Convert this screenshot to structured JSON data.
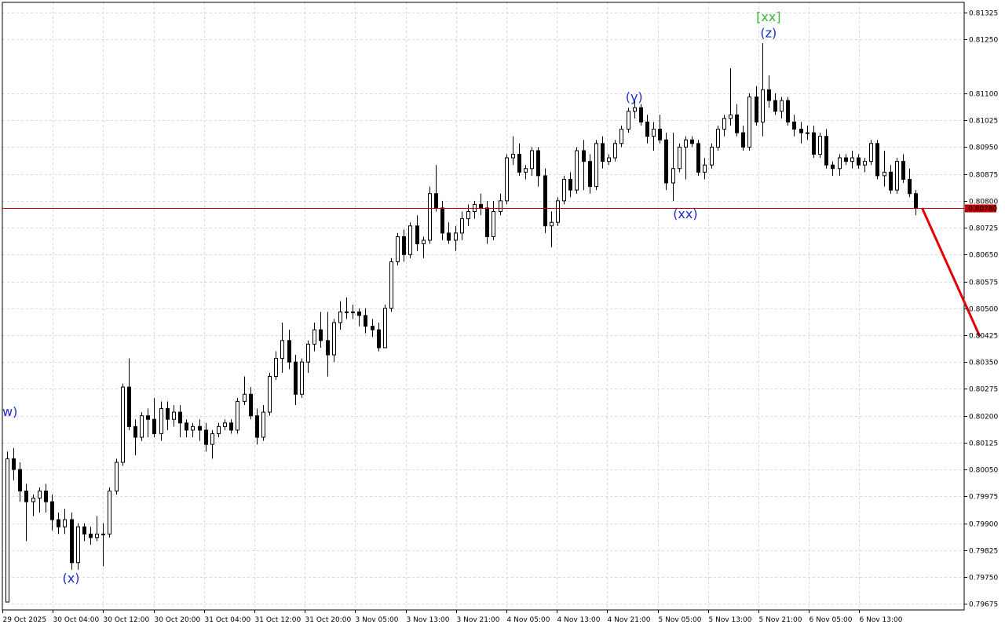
{
  "chart_data": {
    "type": "candlestick",
    "instrument_note": "",
    "colors": {
      "background": "#ffffff",
      "grid": "#d9d9d9",
      "axis": "#000000",
      "candle_up_fill": "#ffffff",
      "candle_down_fill": "#000000",
      "candle_border": "#000000",
      "price_line": "#c00000",
      "price_label_bg": "#c00000",
      "price_label_text": "#ffffff",
      "forecast_line": "#e00000",
      "wave_label_blue": "#1a2bd1",
      "wave_label_green": "#33bb33"
    },
    "y_axis": {
      "ticks": [
        "0.81325",
        "0.81250",
        "0.81100",
        "0.81025",
        "0.80950",
        "0.80875",
        "0.80800",
        "0.80725",
        "0.80650",
        "0.80575",
        "0.80500",
        "0.80425",
        "0.80350",
        "0.80275",
        "0.80200",
        "0.80125",
        "0.80050",
        "0.79975",
        "0.79900",
        "0.79825",
        "0.79750",
        "0.79675"
      ],
      "ylim": [
        0.79658,
        0.81354
      ]
    },
    "x_axis": {
      "ticks": [
        "29 Oct 2025",
        "30 Oct 04:00",
        "30 Oct 12:00",
        "30 Oct 20:00",
        "31 Oct 04:00",
        "31 Oct 12:00",
        "31 Oct 20:00",
        "3 Nov 05:00",
        "3 Nov 13:00",
        "3 Nov 21:00",
        "4 Nov 05:00",
        "4 Nov 13:00",
        "4 Nov 21:00",
        "5 Nov 05:00",
        "5 Nov 13:00",
        "5 Nov 21:00",
        "6 Nov 05:00",
        "6 Nov 13:00"
      ],
      "bar_step_label": "1 bar = 1 hour"
    },
    "current_price": {
      "value": 0.8078,
      "label": "0.80780"
    },
    "ohlc": [
      [
        0.7968,
        0.801,
        0.7968,
        0.8008
      ],
      [
        0.8008,
        0.8011,
        0.8002,
        0.8005
      ],
      [
        0.8005,
        0.8007,
        0.7996,
        0.7999
      ],
      [
        0.7999,
        0.8001,
        0.7985,
        0.7996
      ],
      [
        0.7996,
        0.7998,
        0.7992,
        0.7997
      ],
      [
        0.7997,
        0.8,
        0.7993,
        0.7999
      ],
      [
        0.7999,
        0.8001,
        0.7993,
        0.7996
      ],
      [
        0.7996,
        0.7998,
        0.7988,
        0.7991
      ],
      [
        0.7991,
        0.7993,
        0.7987,
        0.7989
      ],
      [
        0.7989,
        0.7994,
        0.7987,
        0.7991
      ],
      [
        0.7991,
        0.7993,
        0.7977,
        0.7979
      ],
      [
        0.7979,
        0.799,
        0.7977,
        0.7989
      ],
      [
        0.7989,
        0.799,
        0.7985,
        0.7987
      ],
      [
        0.7987,
        0.7989,
        0.7984,
        0.7986
      ],
      [
        0.7986,
        0.7992,
        0.7985,
        0.7987
      ],
      [
        0.7987,
        0.799,
        0.7978,
        0.7987
      ],
      [
        0.7987,
        0.8,
        0.7986,
        0.7999
      ],
      [
        0.7999,
        0.8008,
        0.7998,
        0.8007
      ],
      [
        0.8007,
        0.8029,
        0.8006,
        0.8028
      ],
      [
        0.8028,
        0.8036,
        0.8016,
        0.8017
      ],
      [
        0.8017,
        0.8019,
        0.8009,
        0.8014
      ],
      [
        0.8014,
        0.8021,
        0.8013,
        0.802
      ],
      [
        0.802,
        0.8022,
        0.8014,
        0.8019
      ],
      [
        0.8019,
        0.8025,
        0.8014,
        0.8015
      ],
      [
        0.8015,
        0.8024,
        0.8013,
        0.8022
      ],
      [
        0.8022,
        0.8024,
        0.8016,
        0.8019
      ],
      [
        0.8019,
        0.8023,
        0.8017,
        0.8021
      ],
      [
        0.8021,
        0.8023,
        0.8014,
        0.8018
      ],
      [
        0.8018,
        0.8019,
        0.8014,
        0.8016
      ],
      [
        0.8016,
        0.8018,
        0.8014,
        0.8017
      ],
      [
        0.8017,
        0.8019,
        0.8013,
        0.8016
      ],
      [
        0.8016,
        0.8018,
        0.801,
        0.8012
      ],
      [
        0.8012,
        0.8016,
        0.8008,
        0.8015
      ],
      [
        0.8015,
        0.8018,
        0.8014,
        0.8017
      ],
      [
        0.8017,
        0.8019,
        0.8016,
        0.8018
      ],
      [
        0.8018,
        0.8019,
        0.8015,
        0.8016
      ],
      [
        0.8016,
        0.8025,
        0.8015,
        0.8024
      ],
      [
        0.8024,
        0.8031,
        0.8023,
        0.8026
      ],
      [
        0.8026,
        0.8028,
        0.8019,
        0.802
      ],
      [
        0.802,
        0.8022,
        0.8012,
        0.8014
      ],
      [
        0.8014,
        0.8023,
        0.8013,
        0.8021
      ],
      [
        0.8021,
        0.8032,
        0.802,
        0.8031
      ],
      [
        0.8031,
        0.8038,
        0.803,
        0.8036
      ],
      [
        0.8036,
        0.8046,
        0.8032,
        0.8041
      ],
      [
        0.8041,
        0.8044,
        0.8033,
        0.8035
      ],
      [
        0.8035,
        0.8037,
        0.8023,
        0.8026
      ],
      [
        0.8026,
        0.8036,
        0.8025,
        0.8035
      ],
      [
        0.8035,
        0.8041,
        0.8032,
        0.804
      ],
      [
        0.804,
        0.8046,
        0.8038,
        0.8044
      ],
      [
        0.8044,
        0.8049,
        0.8039,
        0.8041
      ],
      [
        0.8041,
        0.8049,
        0.8031,
        0.8037
      ],
      [
        0.8037,
        0.8047,
        0.8035,
        0.8046
      ],
      [
        0.8046,
        0.8052,
        0.8044,
        0.8049
      ],
      [
        0.8049,
        0.8053,
        0.8047,
        0.8049
      ],
      [
        0.8049,
        0.8051,
        0.8047,
        0.8049
      ],
      [
        0.8049,
        0.805,
        0.8045,
        0.8048
      ],
      [
        0.8048,
        0.805,
        0.8043,
        0.8045
      ],
      [
        0.8045,
        0.8047,
        0.8042,
        0.8044
      ],
      [
        0.8044,
        0.8046,
        0.8038,
        0.8039
      ],
      [
        0.8039,
        0.8051,
        0.8039,
        0.805
      ],
      [
        0.805,
        0.8064,
        0.8049,
        0.8063
      ],
      [
        0.8063,
        0.8071,
        0.8062,
        0.807
      ],
      [
        0.807,
        0.8072,
        0.8063,
        0.8065
      ],
      [
        0.8065,
        0.8074,
        0.8064,
        0.8073
      ],
      [
        0.8073,
        0.8076,
        0.8066,
        0.8068
      ],
      [
        0.8068,
        0.807,
        0.8064,
        0.8069
      ],
      [
        0.8069,
        0.8084,
        0.8068,
        0.8082
      ],
      [
        0.8082,
        0.809,
        0.8077,
        0.8078
      ],
      [
        0.8078,
        0.808,
        0.8069,
        0.8071
      ],
      [
        0.8071,
        0.8074,
        0.8068,
        0.8069
      ],
      [
        0.8069,
        0.8073,
        0.8066,
        0.8071
      ],
      [
        0.8071,
        0.8077,
        0.8069,
        0.8075
      ],
      [
        0.8075,
        0.8079,
        0.8073,
        0.8077
      ],
      [
        0.8077,
        0.808,
        0.8075,
        0.8079
      ],
      [
        0.8079,
        0.8082,
        0.8076,
        0.8078
      ],
      [
        0.8078,
        0.808,
        0.8068,
        0.807
      ],
      [
        0.807,
        0.808,
        0.8069,
        0.8077
      ],
      [
        0.8077,
        0.8082,
        0.8076,
        0.808
      ],
      [
        0.808,
        0.8093,
        0.8079,
        0.8092
      ],
      [
        0.8092,
        0.8098,
        0.809,
        0.8093
      ],
      [
        0.8093,
        0.8096,
        0.8087,
        0.8088
      ],
      [
        0.8088,
        0.809,
        0.8086,
        0.8089
      ],
      [
        0.8089,
        0.8095,
        0.8087,
        0.8094
      ],
      [
        0.8094,
        0.8095,
        0.8084,
        0.8087
      ],
      [
        0.8087,
        0.8089,
        0.8071,
        0.8073
      ],
      [
        0.8073,
        0.8077,
        0.8067,
        0.8074
      ],
      [
        0.8074,
        0.8081,
        0.8073,
        0.808
      ],
      [
        0.808,
        0.8087,
        0.8079,
        0.8086
      ],
      [
        0.8086,
        0.8088,
        0.8081,
        0.8083
      ],
      [
        0.8083,
        0.8095,
        0.8082,
        0.8094
      ],
      [
        0.8094,
        0.8097,
        0.8083,
        0.8091
      ],
      [
        0.8091,
        0.8093,
        0.8082,
        0.8084
      ],
      [
        0.8084,
        0.8097,
        0.8083,
        0.8096
      ],
      [
        0.8096,
        0.8098,
        0.8089,
        0.8091
      ],
      [
        0.8091,
        0.8093,
        0.809,
        0.8092
      ],
      [
        0.8092,
        0.8097,
        0.8091,
        0.8096
      ],
      [
        0.8096,
        0.8101,
        0.8095,
        0.81
      ],
      [
        0.81,
        0.8106,
        0.8099,
        0.8105
      ],
      [
        0.8105,
        0.8108,
        0.8103,
        0.8106
      ],
      [
        0.8106,
        0.8107,
        0.8101,
        0.8102
      ],
      [
        0.8102,
        0.8104,
        0.8096,
        0.8098
      ],
      [
        0.8098,
        0.8102,
        0.8094,
        0.81
      ],
      [
        0.81,
        0.8104,
        0.8096,
        0.8097
      ],
      [
        0.8097,
        0.8099,
        0.8083,
        0.8085
      ],
      [
        0.8085,
        0.8099,
        0.808,
        0.8089
      ],
      [
        0.8089,
        0.8096,
        0.8088,
        0.8095
      ],
      [
        0.8095,
        0.8098,
        0.8086,
        0.8097
      ],
      [
        0.8097,
        0.8098,
        0.8095,
        0.8096
      ],
      [
        0.8096,
        0.8097,
        0.8087,
        0.8088
      ],
      [
        0.8088,
        0.8092,
        0.8086,
        0.809
      ],
      [
        0.809,
        0.8096,
        0.8089,
        0.8095
      ],
      [
        0.8095,
        0.8101,
        0.8094,
        0.81
      ],
      [
        0.81,
        0.8104,
        0.8098,
        0.8103
      ],
      [
        0.8103,
        0.8117,
        0.8101,
        0.8104
      ],
      [
        0.8104,
        0.8107,
        0.8098,
        0.8099
      ],
      [
        0.8099,
        0.8101,
        0.8094,
        0.8095
      ],
      [
        0.8095,
        0.811,
        0.8094,
        0.8109
      ],
      [
        0.8109,
        0.8112,
        0.8101,
        0.8102
      ],
      [
        0.8102,
        0.8124,
        0.8098,
        0.8111
      ],
      [
        0.8111,
        0.8115,
        0.8106,
        0.8108
      ],
      [
        0.8108,
        0.811,
        0.8104,
        0.8105
      ],
      [
        0.8105,
        0.8109,
        0.8103,
        0.8108
      ],
      [
        0.8108,
        0.8109,
        0.8101,
        0.8102
      ],
      [
        0.8102,
        0.8104,
        0.8098,
        0.81
      ],
      [
        0.81,
        0.8102,
        0.8096,
        0.8099
      ],
      [
        0.8099,
        0.8101,
        0.8097,
        0.8099
      ],
      [
        0.8099,
        0.8101,
        0.8092,
        0.8093
      ],
      [
        0.8093,
        0.8099,
        0.8092,
        0.8098
      ],
      [
        0.8098,
        0.81,
        0.8089,
        0.809
      ],
      [
        0.809,
        0.8091,
        0.8087,
        0.8089
      ],
      [
        0.8089,
        0.8093,
        0.8087,
        0.8092
      ],
      [
        0.8092,
        0.8093,
        0.809,
        0.8091
      ],
      [
        0.8091,
        0.8094,
        0.8089,
        0.8092
      ],
      [
        0.8092,
        0.8093,
        0.8089,
        0.809
      ],
      [
        0.809,
        0.8092,
        0.8088,
        0.8091
      ],
      [
        0.8091,
        0.8097,
        0.809,
        0.8096
      ],
      [
        0.8096,
        0.8097,
        0.8086,
        0.8087
      ],
      [
        0.8087,
        0.8094,
        0.8084,
        0.8088
      ],
      [
        0.8088,
        0.809,
        0.8082,
        0.8083
      ],
      [
        0.8083,
        0.8092,
        0.8082,
        0.8091
      ],
      [
        0.8091,
        0.8093,
        0.8085,
        0.8086
      ],
      [
        0.8086,
        0.8089,
        0.8081,
        0.8082
      ],
      [
        0.8082,
        0.8083,
        0.8076,
        0.8078
      ]
    ],
    "forecast": {
      "from": {
        "bar": 143,
        "price": 0.8078
      },
      "to": {
        "bar": 152,
        "price": 0.80422
      }
    },
    "wave_labels": [
      {
        "text": "w)",
        "bar": 0,
        "price": 0.80212,
        "color": "blue"
      },
      {
        "text": "(x)",
        "bar": 10,
        "price": 0.79748,
        "color": "blue"
      },
      {
        "text": "(y)",
        "bar": 98,
        "price": 0.81091,
        "color": "blue"
      },
      {
        "text": "(xx)",
        "bar": 106,
        "price": 0.80765,
        "color": "blue"
      },
      {
        "text": "[xx]",
        "bar": 119,
        "price": 0.81315,
        "color": "green"
      },
      {
        "text": "(z)",
        "bar": 119,
        "price": 0.8127,
        "color": "blue"
      }
    ]
  }
}
